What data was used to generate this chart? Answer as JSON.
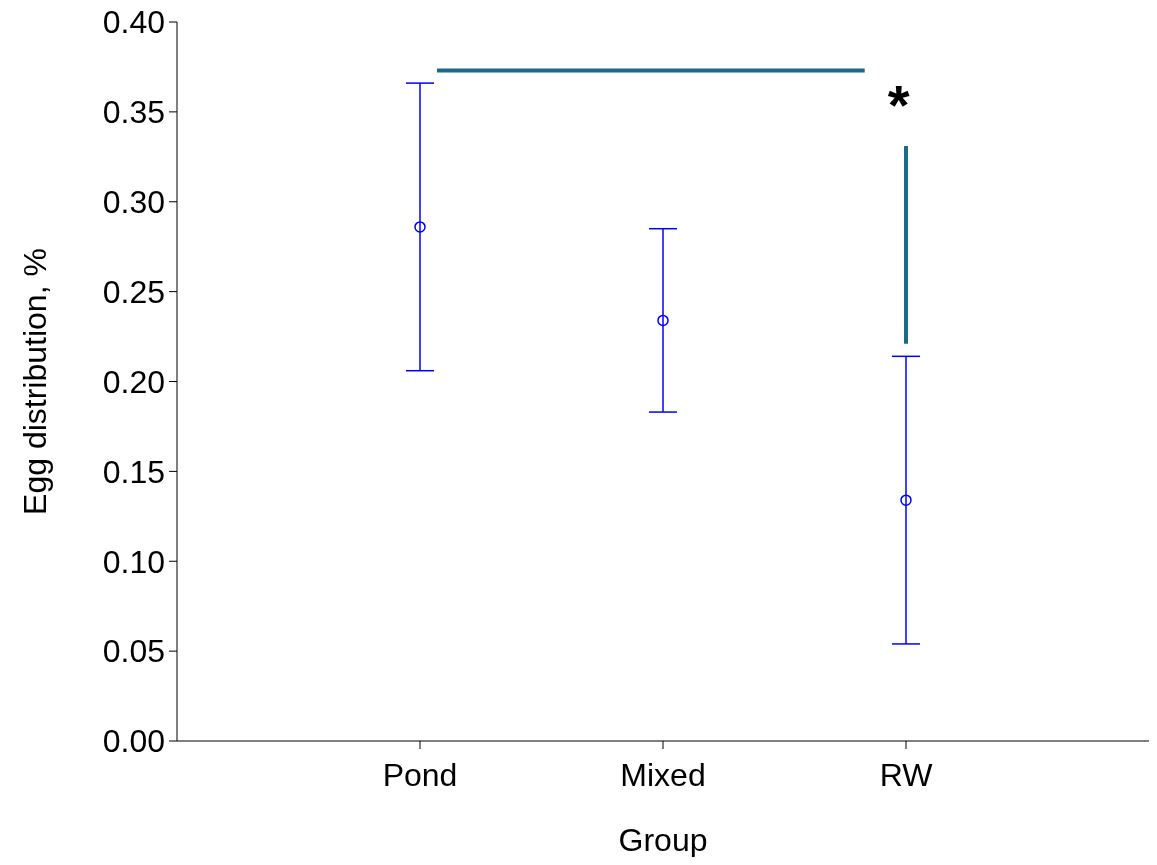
{
  "chart_data": {
    "type": "scatter",
    "xlabel": "Group",
    "ylabel": "Egg distribution, %",
    "categories": [
      "Pond",
      "Mixed",
      "RW"
    ],
    "series": [
      {
        "color": "#0000ff",
        "values": [
          0.286,
          0.234,
          0.134
        ],
        "errors": [
          0.08,
          0.051,
          0.08
        ]
      }
    ],
    "ylim": [
      0,
      0.4
    ],
    "yticks": [
      {
        "value": 0,
        "label": "0.00"
      },
      {
        "value": 0.05,
        "label": "0.05"
      },
      {
        "value": 0.1,
        "label": "0.10"
      },
      {
        "value": 0.15,
        "label": "0.15"
      },
      {
        "value": 0.2,
        "label": "0.20"
      },
      {
        "value": 0.25,
        "label": "0.25"
      },
      {
        "value": 0.3,
        "label": "0.30"
      },
      {
        "value": 0.35,
        "label": "0.35"
      },
      {
        "value": 0.4,
        "label": "0.40"
      }
    ],
    "marker": "circle",
    "grid": false,
    "annotations": [
      "*"
    ]
  }
}
